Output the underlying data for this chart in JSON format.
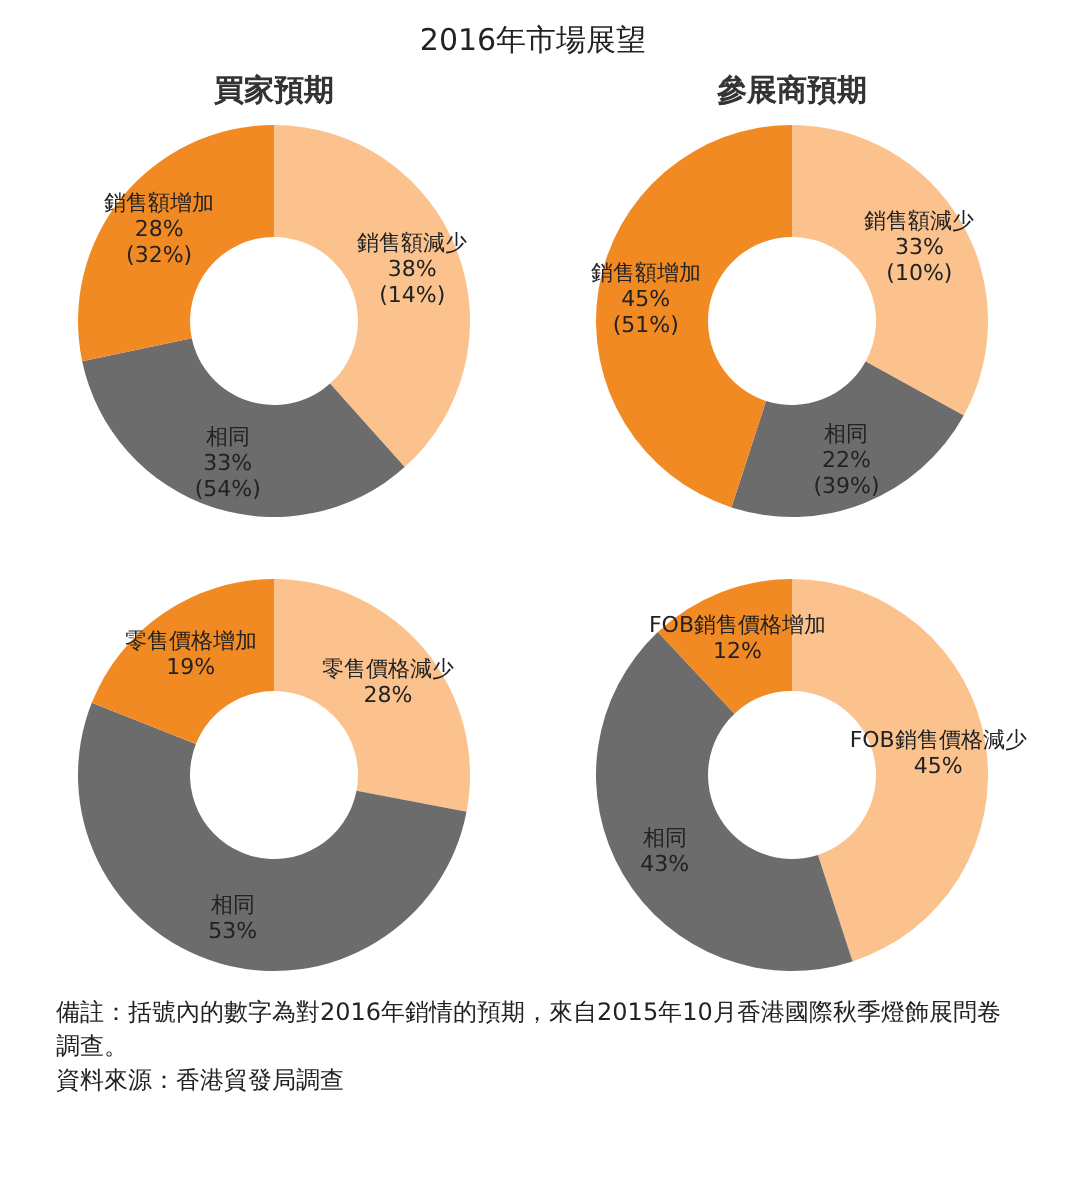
{
  "chart_data": [
    {
      "type": "donut",
      "title": "2016年市場展望",
      "subtitle": "買家預期",
      "categories": [
        "銷售額減少",
        "相同",
        "銷售額增加"
      ],
      "values": [
        38,
        33,
        28
      ],
      "colors": [
        "#fbc28e",
        "#6c6c6c",
        "#f28a24"
      ],
      "value_labels": [
        "38%\n(14%)",
        "33%\n(54%)",
        "28%\n(32%)"
      ]
    },
    {
      "type": "donut",
      "subtitle": "參展商預期",
      "categories": [
        "銷售額減少",
        "相同",
        "銷售額增加"
      ],
      "values": [
        33,
        22,
        45
      ],
      "colors": [
        "#fbc28e",
        "#6c6c6c",
        "#f28a24"
      ],
      "value_labels": [
        "33%\n(10%)",
        "22%\n(39%)",
        "45%\n(51%)"
      ]
    },
    {
      "type": "donut",
      "categories": [
        "零售價格減少",
        "相同",
        "零售價格增加"
      ],
      "values": [
        28,
        53,
        19
      ],
      "colors": [
        "#fbc28e",
        "#6c6c6c",
        "#f28a24"
      ],
      "value_labels": [
        "28%",
        "53%",
        "19%"
      ]
    },
    {
      "type": "donut",
      "categories": [
        "FOB銷售價格減少",
        "相同",
        "FOB銷售價格增加"
      ],
      "values": [
        45,
        43,
        12
      ],
      "colors": [
        "#fbc28e",
        "#6c6c6c",
        "#f28a24"
      ],
      "value_labels": [
        "45%",
        "43%",
        "12%"
      ],
      "annotations": [
        "備註：括號內的數字為對2016年銷情的預期，來自2015年10月香港國際秋季燈飾展問卷調查。",
        "資料來源：香港貿發局調查"
      ]
    }
  ]
}
